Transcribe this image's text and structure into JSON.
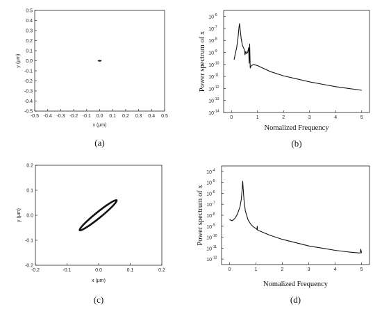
{
  "chart_data": [
    {
      "type": "scatter",
      "caption": "(a)",
      "xlabel": "x (μm)",
      "ylabel": "y (μm)",
      "xlim": [
        -0.5,
        0.5
      ],
      "ylim": [
        -0.5,
        0.5
      ],
      "xticks": [
        -0.5,
        -0.4,
        -0.3,
        -0.2,
        -0.1,
        0,
        0.1,
        0.2,
        0.3,
        0.4,
        0.5
      ],
      "xtick_labels": [
        "-0.5",
        "-0.4",
        "-0.3",
        "-0.2",
        "-0.1",
        "0.0",
        "0.1",
        "0.2",
        "0.3",
        "0.4",
        "0.5"
      ],
      "yticks": [
        -0.5,
        -0.4,
        -0.3,
        -0.2,
        -0.1,
        0,
        0.1,
        0.2,
        0.3,
        0.4,
        0.5
      ],
      "ytick_labels": [
        "-0.5",
        "-0.4",
        "-0.3",
        "-0.2",
        "-0.1",
        "0.0",
        "0.1",
        "0.2",
        "0.3",
        "0.4",
        "0.5"
      ],
      "grid": false,
      "trajectory": {
        "shape": "blob",
        "cx": 0.0,
        "cy": 0.0,
        "rx": 0.015,
        "ry": 0.008
      }
    },
    {
      "type": "line",
      "caption": "(b)",
      "xlabel": "Nomalized Frequency",
      "ylabel": "Power spectrum of x",
      "xlim": [
        -0.3,
        5.3
      ],
      "ylim_log10": [
        -14,
        -5.5
      ],
      "log_y": true,
      "xticks": [
        0,
        1,
        2,
        3,
        4,
        5
      ],
      "xtick_labels": [
        "0",
        "1",
        "2",
        "3",
        "4",
        "5"
      ],
      "ytick_exponents": [
        -14,
        -13,
        -12,
        -11,
        -10,
        -9,
        -8,
        -7,
        -6
      ],
      "ytick_labels": [
        "10",
        "10",
        "10",
        "10",
        "10",
        "10",
        "10",
        "10",
        "10"
      ],
      "ytick_superscripts": [
        "-14",
        "-13",
        "-12",
        "-11",
        "-10",
        "-9",
        "-8",
        "-7",
        "-6"
      ],
      "grid": false,
      "series_points": [
        [
          0.1,
          -9.6
        ],
        [
          0.2,
          -8.6
        ],
        [
          0.25,
          -7.8
        ],
        [
          0.29,
          -6.9
        ],
        [
          0.31,
          -6.6
        ],
        [
          0.33,
          -7.0
        ],
        [
          0.37,
          -7.8
        ],
        [
          0.42,
          -8.4
        ],
        [
          0.5,
          -8.8
        ],
        [
          0.52,
          -9.2
        ],
        [
          0.55,
          -8.9
        ],
        [
          0.58,
          -9.1
        ],
        [
          0.62,
          -9.0
        ],
        [
          0.66,
          -8.6
        ],
        [
          0.68,
          -9.9
        ],
        [
          0.7,
          -8.3
        ],
        [
          0.72,
          -10.3
        ],
        [
          0.76,
          -10.1
        ],
        [
          0.85,
          -10.0
        ],
        [
          1.0,
          -10.1
        ],
        [
          1.5,
          -10.6
        ],
        [
          2.0,
          -10.95
        ],
        [
          2.5,
          -11.2
        ],
        [
          3.0,
          -11.45
        ],
        [
          3.5,
          -11.65
        ],
        [
          4.0,
          -11.85
        ],
        [
          4.5,
          -12.0
        ],
        [
          5.0,
          -12.15
        ]
      ]
    },
    {
      "type": "scatter",
      "caption": "(c)",
      "xlabel": "x (μm)",
      "ylabel": "y (μm)",
      "xlim": [
        -0.2,
        0.2
      ],
      "ylim": [
        -0.2,
        0.2
      ],
      "xticks": [
        -0.2,
        -0.1,
        0,
        0.1,
        0.2
      ],
      "xtick_labels": [
        "-0.2",
        "-0.1",
        "0.0",
        "0.1",
        "0.2"
      ],
      "yticks": [
        -0.2,
        -0.1,
        0,
        0.1,
        0.2
      ],
      "ytick_labels": [
        "-0.2",
        "-0.1",
        "0.0",
        "0.1",
        "0.2"
      ],
      "grid": false,
      "trajectory": {
        "shape": "ellipse",
        "cx": 0.0,
        "cy": 0.0,
        "end_a": [
          -0.06,
          -0.06
        ],
        "end_b": [
          0.057,
          0.06
        ],
        "minor_halfwidth": 0.009
      }
    },
    {
      "type": "line",
      "caption": "(d)",
      "xlabel": "Nomalized Frequency",
      "ylabel": "Power spectrum of x",
      "xlim": [
        -0.3,
        5.3
      ],
      "ylim_log10": [
        -12.5,
        -3.5
      ],
      "log_y": true,
      "xticks": [
        0,
        1,
        2,
        3,
        4,
        5
      ],
      "xtick_labels": [
        "0",
        "1",
        "2",
        "3",
        "4",
        "5"
      ],
      "ytick_exponents": [
        -12,
        -11,
        -10,
        -9,
        -8,
        -7,
        -6,
        -5,
        -4
      ],
      "ytick_labels": [
        "10",
        "10",
        "10",
        "10",
        "10",
        "10",
        "10",
        "10",
        "10"
      ],
      "ytick_superscripts": [
        "-12",
        "-11",
        "-10",
        "-9",
        "-8",
        "-7",
        "-6",
        "-5",
        "-4"
      ],
      "grid": false,
      "series_points": [
        [
          0.0,
          -8.4
        ],
        [
          0.1,
          -8.5
        ],
        [
          0.2,
          -8.3
        ],
        [
          0.3,
          -7.9
        ],
        [
          0.4,
          -7.2
        ],
        [
          0.45,
          -6.5
        ],
        [
          0.48,
          -5.6
        ],
        [
          0.5,
          -4.9
        ],
        [
          0.52,
          -5.6
        ],
        [
          0.55,
          -6.6
        ],
        [
          0.6,
          -7.6
        ],
        [
          0.7,
          -8.4
        ],
        [
          0.8,
          -8.8
        ],
        [
          0.9,
          -9.05
        ],
        [
          1.0,
          -9.2
        ],
        [
          1.04,
          -9.3
        ],
        [
          1.05,
          -9.0
        ],
        [
          1.06,
          -9.35
        ],
        [
          1.5,
          -9.8
        ],
        [
          2.0,
          -10.2
        ],
        [
          2.5,
          -10.5
        ],
        [
          3.0,
          -10.8
        ],
        [
          3.5,
          -11.0
        ],
        [
          4.0,
          -11.2
        ],
        [
          4.5,
          -11.35
        ],
        [
          4.95,
          -11.45
        ],
        [
          4.97,
          -11.1
        ],
        [
          5.0,
          -11.45
        ]
      ]
    }
  ]
}
